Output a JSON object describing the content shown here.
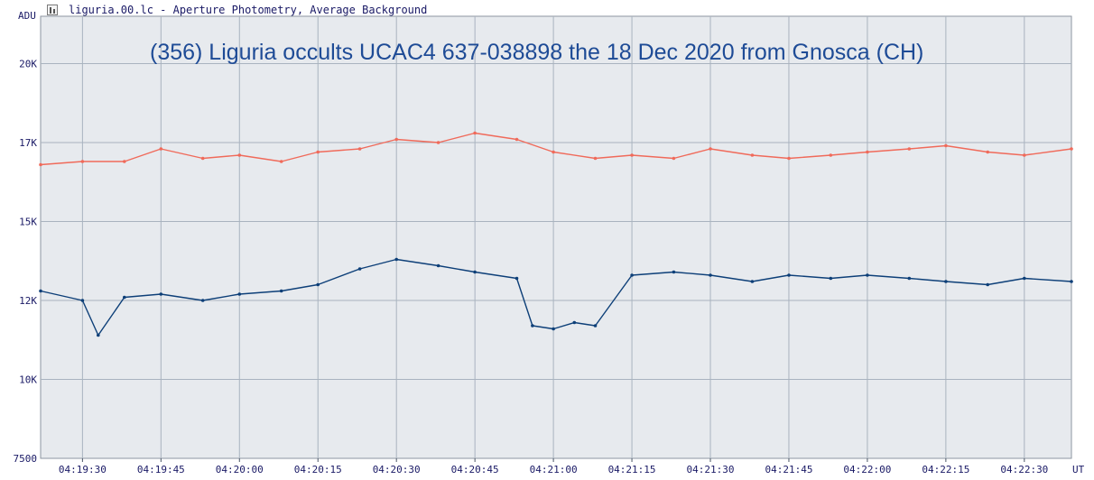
{
  "window": {
    "title": "liguria.00.lc - Aperture Photometry, Average Background"
  },
  "chart_data": {
    "type": "line",
    "title": "(356) Liguria occults UCAC4 637-038898 the 18 Dec 2020 from Gnosca (CH)",
    "ylabel": "ADU",
    "xlabel": "UT",
    "ylim": [
      7500,
      21500
    ],
    "xlim": [
      "04:19:22",
      "04:22:39"
    ],
    "y_ticks": [
      {
        "value": 7500,
        "label": "7500"
      },
      {
        "value": 10000,
        "label": "10K"
      },
      {
        "value": 12500,
        "label": "12K"
      },
      {
        "value": 15000,
        "label": "15K"
      },
      {
        "value": 17500,
        "label": "17K"
      },
      {
        "value": 20000,
        "label": "20K"
      }
    ],
    "x_ticks": [
      "04:19:30",
      "04:19:45",
      "04:20:00",
      "04:20:15",
      "04:20:30",
      "04:20:45",
      "04:21:00",
      "04:21:15",
      "04:21:30",
      "04:21:45",
      "04:22:00",
      "04:22:15",
      "04:22:30"
    ],
    "grid": true,
    "colors": {
      "comparison": "#f06a5a",
      "target": "#0d3f78",
      "grid": "#a9b3bf",
      "background": "#e7eaee",
      "tick_text": "#1a1a66",
      "title": "#1e4b96"
    },
    "series": [
      {
        "key": "comparison",
        "x": [
          "04:19:22",
          "04:19:30",
          "04:19:38",
          "04:19:45",
          "04:19:53",
          "04:20:00",
          "04:20:08",
          "04:20:15",
          "04:20:23",
          "04:20:30",
          "04:20:38",
          "04:20:45",
          "04:20:53",
          "04:21:00",
          "04:21:08",
          "04:21:15",
          "04:21:23",
          "04:21:30",
          "04:21:38",
          "04:21:45",
          "04:21:53",
          "04:22:00",
          "04:22:08",
          "04:22:15",
          "04:22:23",
          "04:22:30",
          "04:22:39"
        ],
        "values": [
          16800,
          16900,
          16900,
          17300,
          17000,
          17100,
          16900,
          17200,
          17300,
          17600,
          17500,
          17800,
          17600,
          17200,
          17000,
          17100,
          17000,
          17300,
          17100,
          17000,
          17100,
          17200,
          17300,
          17400,
          17200,
          17100,
          17300
        ]
      },
      {
        "key": "target",
        "x": [
          "04:19:22",
          "04:19:30",
          "04:19:33",
          "04:19:38",
          "04:19:45",
          "04:19:53",
          "04:20:00",
          "04:20:08",
          "04:20:15",
          "04:20:23",
          "04:20:30",
          "04:20:38",
          "04:20:45",
          "04:20:53",
          "04:20:56",
          "04:21:00",
          "04:21:04",
          "04:21:08",
          "04:21:15",
          "04:21:23",
          "04:21:30",
          "04:21:38",
          "04:21:45",
          "04:21:53",
          "04:22:00",
          "04:22:08",
          "04:22:15",
          "04:22:23",
          "04:22:30",
          "04:22:39"
        ],
        "values": [
          12800,
          12500,
          11400,
          12600,
          12700,
          12500,
          12700,
          12800,
          13000,
          13500,
          13800,
          13600,
          13400,
          13200,
          11700,
          11600,
          11800,
          11700,
          13300,
          13400,
          13300,
          13100,
          13300,
          13200,
          13300,
          13200,
          13100,
          13000,
          13200,
          13100
        ]
      }
    ]
  }
}
